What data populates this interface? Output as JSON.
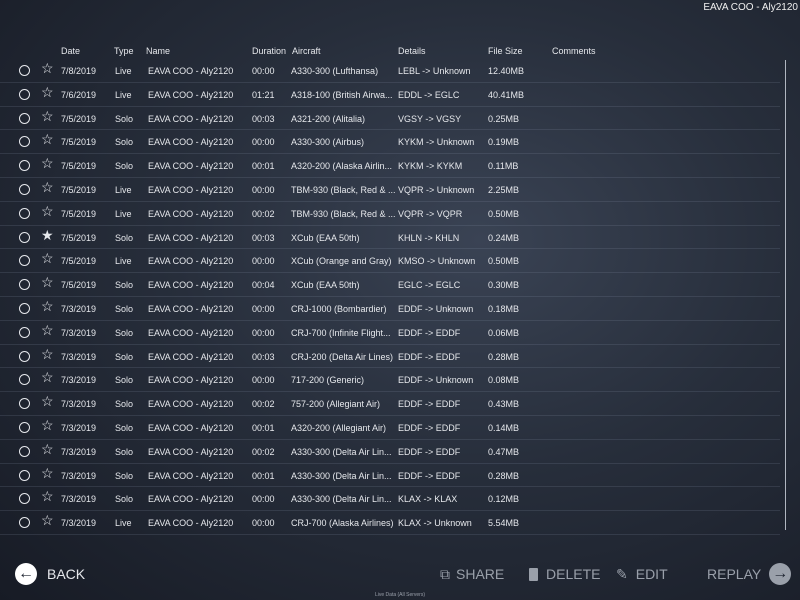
{
  "title": "EAVA COO - Aly2120",
  "columns": {
    "date": "Date",
    "type": "Type",
    "name": "Name",
    "duration": "Duration",
    "aircraft": "Aircraft",
    "details": "Details",
    "file_size": "File Size",
    "comments": "Comments"
  },
  "rows": [
    {
      "date": "7/8/2019",
      "type": "Live",
      "name": "EAVA COO - Aly2120",
      "duration": "00:00",
      "aircraft": "A330-300 (Lufthansa)",
      "details": "LEBL -> Unknown",
      "size": "12.40MB",
      "starred": false
    },
    {
      "date": "7/6/2019",
      "type": "Live",
      "name": "EAVA COO - Aly2120",
      "duration": "01:21",
      "aircraft": "A318-100 (British Airwa...",
      "details": "EDDL -> EGLC",
      "size": "40.41MB",
      "starred": false
    },
    {
      "date": "7/5/2019",
      "type": "Solo",
      "name": "EAVA COO - Aly2120",
      "duration": "00:03",
      "aircraft": "A321-200 (Alitalia)",
      "details": "VGSY -> VGSY",
      "size": "0.25MB",
      "starred": false
    },
    {
      "date": "7/5/2019",
      "type": "Solo",
      "name": "EAVA COO - Aly2120",
      "duration": "00:00",
      "aircraft": "A330-300 (Airbus)",
      "details": "KYKM -> Unknown",
      "size": "0.19MB",
      "starred": false
    },
    {
      "date": "7/5/2019",
      "type": "Solo",
      "name": "EAVA COO - Aly2120",
      "duration": "00:01",
      "aircraft": "A320-200 (Alaska Airlin...",
      "details": "KYKM -> KYKM",
      "size": "0.11MB",
      "starred": false
    },
    {
      "date": "7/5/2019",
      "type": "Live",
      "name": "EAVA COO - Aly2120",
      "duration": "00:00",
      "aircraft": "TBM-930 (Black, Red & ...",
      "details": "VQPR -> Unknown",
      "size": "2.25MB",
      "starred": false
    },
    {
      "date": "7/5/2019",
      "type": "Live",
      "name": "EAVA COO - Aly2120",
      "duration": "00:02",
      "aircraft": "TBM-930 (Black, Red & ...",
      "details": "VQPR -> VQPR",
      "size": "0.50MB",
      "starred": false
    },
    {
      "date": "7/5/2019",
      "type": "Solo",
      "name": "EAVA COO - Aly2120",
      "duration": "00:03",
      "aircraft": "XCub (EAA 50th)",
      "details": "KHLN -> KHLN",
      "size": "0.24MB",
      "starred": true
    },
    {
      "date": "7/5/2019",
      "type": "Live",
      "name": "EAVA COO - Aly2120",
      "duration": "00:00",
      "aircraft": "XCub (Orange and Gray)",
      "details": "KMSO -> Unknown",
      "size": "0.50MB",
      "starred": false
    },
    {
      "date": "7/5/2019",
      "type": "Solo",
      "name": "EAVA COO - Aly2120",
      "duration": "00:04",
      "aircraft": "XCub (EAA 50th)",
      "details": "EGLC -> EGLC",
      "size": "0.30MB",
      "starred": false
    },
    {
      "date": "7/3/2019",
      "type": "Solo",
      "name": "EAVA COO - Aly2120",
      "duration": "00:00",
      "aircraft": "CRJ-1000 (Bombardier)",
      "details": "EDDF -> Unknown",
      "size": "0.18MB",
      "starred": false
    },
    {
      "date": "7/3/2019",
      "type": "Solo",
      "name": "EAVA COO - Aly2120",
      "duration": "00:00",
      "aircraft": "CRJ-700 (Infinite Flight...",
      "details": "EDDF -> EDDF",
      "size": "0.06MB",
      "starred": false
    },
    {
      "date": "7/3/2019",
      "type": "Solo",
      "name": "EAVA COO - Aly2120",
      "duration": "00:03",
      "aircraft": "CRJ-200 (Delta Air Lines)",
      "details": "EDDF -> EDDF",
      "size": "0.28MB",
      "starred": false
    },
    {
      "date": "7/3/2019",
      "type": "Solo",
      "name": "EAVA COO - Aly2120",
      "duration": "00:00",
      "aircraft": "717-200 (Generic)",
      "details": "EDDF -> Unknown",
      "size": "0.08MB",
      "starred": false
    },
    {
      "date": "7/3/2019",
      "type": "Solo",
      "name": "EAVA COO - Aly2120",
      "duration": "00:02",
      "aircraft": "757-200 (Allegiant Air)",
      "details": "EDDF -> EDDF",
      "size": "0.43MB",
      "starred": false
    },
    {
      "date": "7/3/2019",
      "type": "Solo",
      "name": "EAVA COO - Aly2120",
      "duration": "00:01",
      "aircraft": "A320-200 (Allegiant Air)",
      "details": "EDDF -> EDDF",
      "size": "0.14MB",
      "starred": false
    },
    {
      "date": "7/3/2019",
      "type": "Solo",
      "name": "EAVA COO - Aly2120",
      "duration": "00:02",
      "aircraft": "A330-300 (Delta Air Lin...",
      "details": "EDDF -> EDDF",
      "size": "0.47MB",
      "starred": false
    },
    {
      "date": "7/3/2019",
      "type": "Solo",
      "name": "EAVA COO - Aly2120",
      "duration": "00:01",
      "aircraft": "A330-300 (Delta Air Lin...",
      "details": "EDDF -> EDDF",
      "size": "0.28MB",
      "starred": false
    },
    {
      "date": "7/3/2019",
      "type": "Solo",
      "name": "EAVA COO - Aly2120",
      "duration": "00:00",
      "aircraft": "A330-300 (Delta Air Lin...",
      "details": "KLAX -> KLAX",
      "size": "0.12MB",
      "starred": false
    },
    {
      "date": "7/3/2019",
      "type": "Live",
      "name": "EAVA COO - Aly2120",
      "duration": "00:00",
      "aircraft": "CRJ-700 (Alaska Airlines)",
      "details": "KLAX -> Unknown",
      "size": "5.54MB",
      "starred": false
    }
  ],
  "footer": {
    "back": "BACK",
    "share": "SHARE",
    "delete": "DELETE",
    "edit": "EDIT",
    "replay": "REPLAY",
    "status": "Live Data (All Servers)"
  },
  "icons": {
    "back": "arrow-left-circle",
    "share": "share-box",
    "delete": "trash",
    "edit": "pencil-square",
    "replay": "arrow-right-circle",
    "select": "radio-circle",
    "favorite": "star"
  }
}
